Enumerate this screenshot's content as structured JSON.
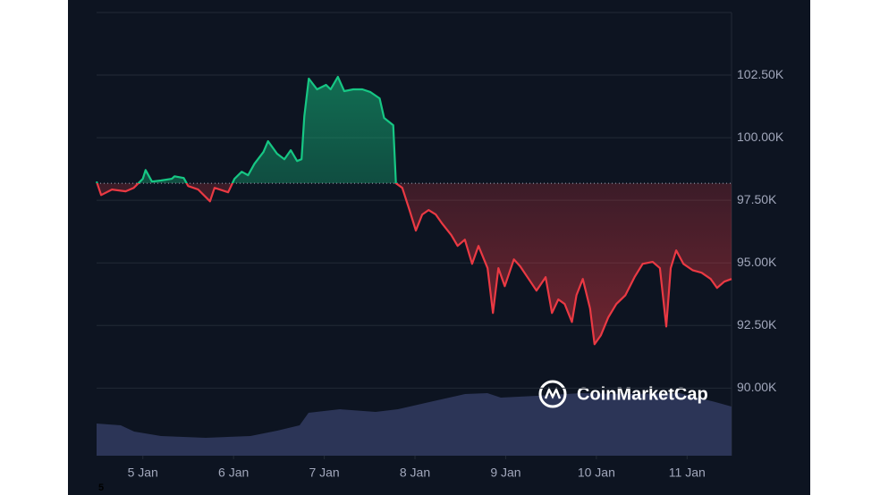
{
  "chart_data": {
    "type": "line",
    "x": [
      4.49,
      4.54,
      4.66,
      4.81,
      4.9,
      5.0,
      5.03,
      5.1,
      5.2,
      5.32,
      5.35,
      5.45,
      5.5,
      5.61,
      5.74,
      5.79,
      5.94,
      6.01,
      6.09,
      6.16,
      6.23,
      6.33,
      6.38,
      6.48,
      6.56,
      6.63,
      6.7,
      6.75,
      6.78,
      6.83,
      6.92,
      7.02,
      7.07,
      7.15,
      7.22,
      7.32,
      7.42,
      7.51,
      7.61,
      7.66,
      7.76,
      7.79,
      7.86,
      7.94,
      8.01,
      8.08,
      8.15,
      8.23,
      8.3,
      8.4,
      8.47,
      8.55,
      8.63,
      8.7,
      8.8,
      8.86,
      8.92,
      8.99,
      9.09,
      9.16,
      9.24,
      9.34,
      9.44,
      9.51,
      9.58,
      9.65,
      9.73,
      9.78,
      9.85,
      9.93,
      9.98,
      10.05,
      10.13,
      10.22,
      10.32,
      10.42,
      10.51,
      10.62,
      10.7,
      10.77,
      10.82,
      10.88,
      10.96,
      11.06,
      11.16,
      11.26,
      11.33,
      11.41,
      11.49
    ],
    "values": [
      98250,
      97710,
      97930,
      97860,
      98000,
      98360,
      98710,
      98250,
      98290,
      98360,
      98460,
      98390,
      98070,
      97930,
      97460,
      98000,
      97820,
      98360,
      98640,
      98500,
      98960,
      99430,
      99860,
      99360,
      99140,
      99500,
      99070,
      99140,
      100860,
      102360,
      101930,
      102110,
      101930,
      102430,
      101860,
      101930,
      101930,
      101820,
      101570,
      100790,
      100500,
      98180,
      98000,
      97110,
      96290,
      96930,
      97110,
      96930,
      96570,
      96110,
      95680,
      95930,
      94960,
      95680,
      94790,
      93000,
      94790,
      94070,
      95140,
      94860,
      94430,
      93890,
      94430,
      93000,
      93540,
      93360,
      92640,
      93710,
      94360,
      93180,
      91750,
      92110,
      92820,
      93360,
      93710,
      94430,
      94960,
      95040,
      94790,
      92460,
      94790,
      95500,
      94960,
      94710,
      94610,
      94360,
      94000,
      94250,
      94360
    ],
    "baseline": 98180,
    "up_color": "#16c784",
    "down_color": "#ea3943",
    "xlim": [
      4.49,
      11.49
    ],
    "xticks": [
      {
        "value": 5,
        "label": "5 Jan"
      },
      {
        "value": 6,
        "label": "6 Jan"
      },
      {
        "value": 7,
        "label": "7 Jan"
      },
      {
        "value": 8,
        "label": "8 Jan"
      },
      {
        "value": 9,
        "label": "9 Jan"
      },
      {
        "value": 10,
        "label": "10 Jan"
      },
      {
        "value": 11,
        "label": "11 Jan"
      }
    ],
    "ylim": [
      87300,
      105000
    ],
    "yticks": [
      {
        "value": 90000,
        "label": "90.00K"
      },
      {
        "value": 92500,
        "label": "92.50K"
      },
      {
        "value": 95000,
        "label": "95.00K"
      },
      {
        "value": 97500,
        "label": "97.50K"
      },
      {
        "value": 100000,
        "label": "100.00K"
      },
      {
        "value": 102500,
        "label": "102.50K"
      }
    ],
    "grid": true,
    "watermark": "CoinMarketCap",
    "footnote": "5"
  }
}
